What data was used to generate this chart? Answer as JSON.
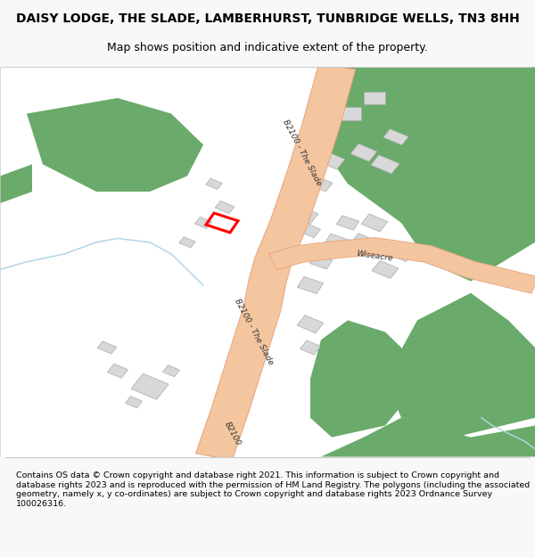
{
  "title": "DAISY LODGE, THE SLADE, LAMBERHURST, TUNBRIDGE WELLS, TN3 8HH",
  "subtitle": "Map shows position and indicative extent of the property.",
  "footer": "Contains OS data © Crown copyright and database right 2021. This information is subject to Crown copyright and database rights 2023 and is reproduced with the permission of HM Land Registry. The polygons (including the associated geometry, namely x, y co-ordinates) are subject to Crown copyright and database rights 2023 Ordnance Survey 100026316.",
  "bg_color": "#f8f8f8",
  "map_bg": "#ffffff",
  "road_color": "#f4c6a0",
  "road_edge_color": "#e8a882",
  "green_color": "#6aaa6a",
  "building_color": "#d8d8d8",
  "building_edge": "#aaaaaa",
  "water_color": "#c8e8f0",
  "plot_color": "#ff0000",
  "road_label1": "B2100 - The Slade",
  "road_label2": "B2100 - The Slade",
  "road_label3": "B2100",
  "side_road_label": "Wiseacre"
}
